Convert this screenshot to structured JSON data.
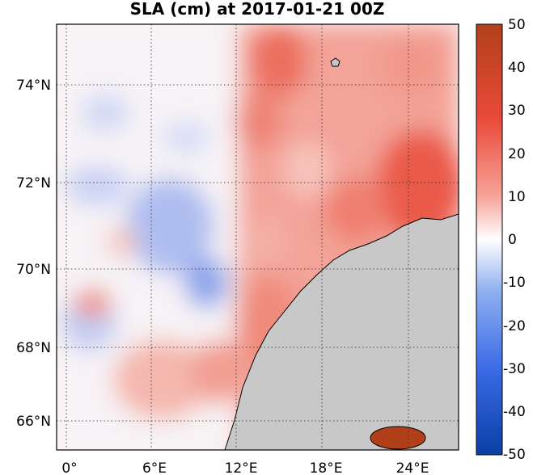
{
  "title": "SLA (cm) at 2017-01-21 00Z",
  "map": {
    "lon_ticks": [
      "0°",
      "6°E",
      "12°E",
      "18°E",
      "24°E"
    ],
    "lat_ticks": [
      "74°N",
      "72°N",
      "70°N",
      "68°N",
      "66°N"
    ],
    "land_color": "#c8c8c8",
    "coast_color": "#000000"
  },
  "colorbar": {
    "ticks": [
      "50",
      "40",
      "30",
      "20",
      "10",
      "0",
      "-10",
      "-20",
      "-30",
      "-40",
      "-50"
    ],
    "colors": [
      "#0a3fa6",
      "#3b6be6",
      "#8faff0",
      "#ffffff",
      "#f7a39a",
      "#ea4a3a",
      "#b1401a"
    ]
  }
}
